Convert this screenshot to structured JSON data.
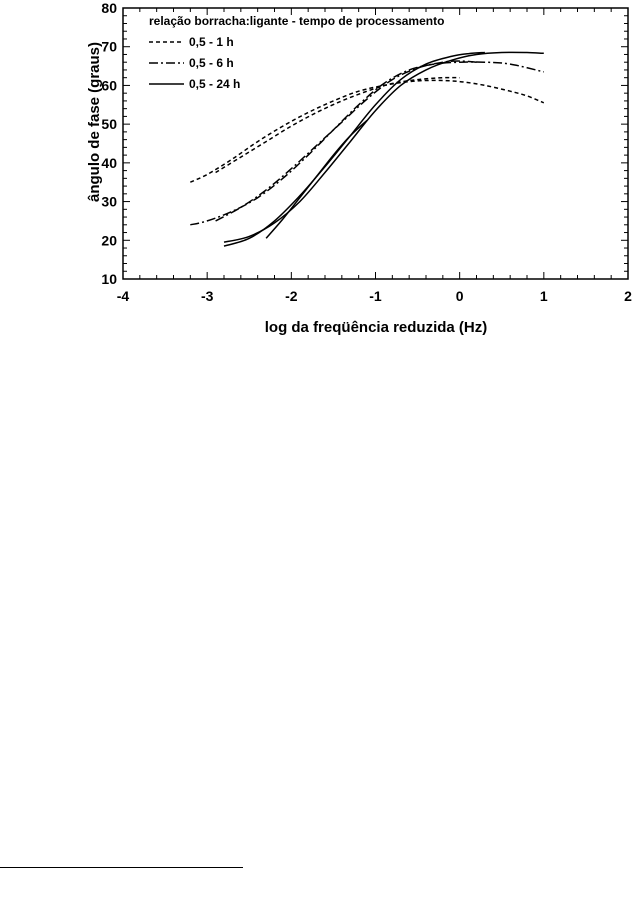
{
  "chart_data": {
    "type": "line",
    "title": "",
    "xlabel": "log da freqüência reduzida (Hz)",
    "ylabel": "ângulo de fase (graus)",
    "xlim": [
      -4,
      2
    ],
    "ylim": [
      10,
      80
    ],
    "x_ticks": [
      "-4",
      "-3",
      "-2",
      "-1",
      "0",
      "1",
      "2"
    ],
    "y_ticks": [
      "10",
      "20",
      "30",
      "40",
      "50",
      "60",
      "70",
      "80"
    ],
    "grid": false,
    "legend": {
      "title": "relação borracha:ligante - tempo de processamento",
      "position": "top-left",
      "entries": [
        "0,5 - 1 h",
        "0,5 - 6 h",
        "0,5 - 24 h"
      ]
    },
    "series": [
      {
        "name": "0,5 - 1 h",
        "style": "dashed",
        "curves": [
          {
            "x": [
              -3.2,
              -3.0,
              -2.7,
              -2.4,
              -2.1,
              -1.8,
              -1.5,
              -1.2,
              -0.9,
              -0.6,
              -0.3,
              0.0,
              0.3,
              0.6,
              0.8,
              1.0
            ],
            "y": [
              35.0,
              37.0,
              41.0,
              45.5,
              49.5,
              53.0,
              56.0,
              58.5,
              60.0,
              61.0,
              61.3,
              61.0,
              60.0,
              58.5,
              57.3,
              55.5
            ]
          },
          {
            "x": [
              -2.9,
              -2.6,
              -2.3,
              -2.0,
              -1.7,
              -1.4,
              -1.1,
              -0.8,
              -0.5,
              -0.2,
              0.0
            ],
            "y": [
              37.5,
              41.5,
              45.5,
              49.5,
              53.0,
              56.0,
              58.5,
              60.5,
              61.5,
              62.0,
              62.0
            ]
          }
        ]
      },
      {
        "name": "0,5 - 6 h",
        "style": "dash-dot",
        "curves": [
          {
            "x": [
              -3.2,
              -3.0,
              -2.7,
              -2.4,
              -2.1,
              -1.8,
              -1.5,
              -1.2,
              -0.9,
              -0.6,
              -0.3,
              0.0,
              0.3,
              0.6,
              1.0
            ],
            "y": [
              24.0,
              25.0,
              27.5,
              31.0,
              36.0,
              42.0,
              48.5,
              55.0,
              60.5,
              64.0,
              65.5,
              66.0,
              66.0,
              65.5,
              63.5
            ]
          },
          {
            "x": [
              -2.9,
              -2.6,
              -2.3,
              -2.0,
              -1.7,
              -1.4,
              -1.1,
              -0.8,
              -0.5,
              -0.2,
              0.0,
              0.2
            ],
            "y": [
              25.0,
              28.5,
              33.0,
              38.5,
              44.5,
              50.5,
              56.5,
              61.5,
              64.5,
              66.0,
              66.3,
              66.0
            ]
          }
        ]
      },
      {
        "name": "0,5 - 24 h",
        "style": "solid",
        "curves": [
          {
            "x": [
              -2.8,
              -2.5,
              -2.2,
              -1.9,
              -1.6,
              -1.3,
              -1.0,
              -0.7,
              -0.4,
              -0.1,
              0.2,
              0.5,
              0.8,
              1.0
            ],
            "y": [
              19.5,
              21.0,
              24.5,
              30.0,
              37.5,
              45.5,
              53.5,
              60.0,
              64.0,
              66.5,
              68.0,
              68.5,
              68.5,
              68.3
            ]
          },
          {
            "x": [
              -2.8,
              -2.5,
              -2.2,
              -1.9,
              -1.6,
              -1.3,
              -1.0,
              -0.7,
              -0.4,
              -0.1,
              0.1,
              0.3
            ],
            "y": [
              18.5,
              20.5,
              25.0,
              31.5,
              39.0,
              47.0,
              55.0,
              61.5,
              65.5,
              67.5,
              68.2,
              68.5
            ]
          },
          {
            "x": [
              -2.3,
              -2.1,
              -1.9,
              -1.7,
              -1.5,
              -1.3,
              -1.1
            ],
            "y": [
              20.5,
              25.5,
              31.0,
              36.5,
              42.0,
              47.0,
              51.0
            ]
          }
        ]
      }
    ]
  }
}
